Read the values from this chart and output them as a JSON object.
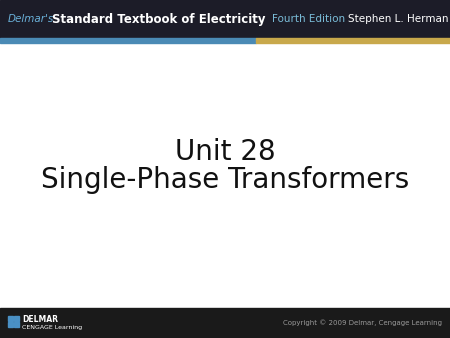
{
  "title_line1": "Unit 28",
  "title_line2": "Single-Phase Transformers",
  "header_text": "Standard Textbook of Electricity",
  "header_delmar": "Delmar's",
  "header_edition": "Fourth Edition",
  "header_author": "Stephen L. Herman",
  "footer_left_line1": "DELMAR",
  "footer_left_line2": "CENGAGE Learning",
  "footer_right": "Copyright © 2009 Delmar, Cengage Learning",
  "header_bg": "#1c1c28",
  "footer_bg": "#1a1a1a",
  "main_bg": "#ffffff",
  "title_color": "#111111",
  "header_delmar_color": "#6ab0d8",
  "header_main_color": "#ffffff",
  "header_edition_color": "#7abcd8",
  "header_author_color": "#ffffff",
  "stripe_blue": "#4a8ab5",
  "stripe_gold": "#c8a84b",
  "footer_text_color": "#ffffff",
  "footer_right_color": "#999999"
}
